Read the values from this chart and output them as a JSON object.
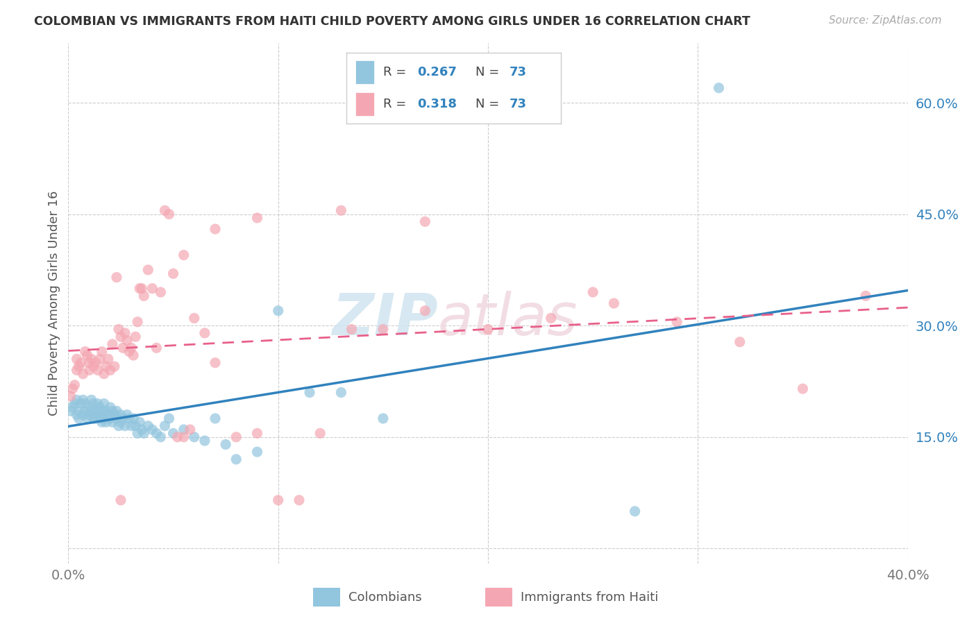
{
  "title": "COLOMBIAN VS IMMIGRANTS FROM HAITI CHILD POVERTY AMONG GIRLS UNDER 16 CORRELATION CHART",
  "source": "Source: ZipAtlas.com",
  "ylabel": "Child Poverty Among Girls Under 16",
  "xlim": [
    0.0,
    0.4
  ],
  "ylim": [
    -0.02,
    0.68
  ],
  "plot_ylim": [
    -0.02,
    0.68
  ],
  "ytick_vals": [
    0.15,
    0.3,
    0.45,
    0.6
  ],
  "ytick_labels": [
    "15.0%",
    "30.0%",
    "45.0%",
    "60.0%"
  ],
  "xtick_vals": [
    0.0,
    0.1,
    0.2,
    0.3,
    0.4
  ],
  "xtick_labels": [
    "0.0%",
    "",
    "",
    "",
    "40.0%"
  ],
  "grid_yticks": [
    0.0,
    0.15,
    0.3,
    0.45,
    0.6
  ],
  "grid_xticks": [
    0.0,
    0.1,
    0.2,
    0.3,
    0.4
  ],
  "legend_r_colombian": "0.267",
  "legend_n_colombian": "73",
  "legend_r_haitian": "0.318",
  "legend_n_haitian": "73",
  "blue_color": "#92c5de",
  "pink_color": "#f4a7b2",
  "blue_line_color": "#3182bd",
  "pink_line_color": "#e8608a",
  "watermark_zip": "ZIP",
  "watermark_atlas": "atlas",
  "grid_color": "#cccccc",
  "colombian_x": [
    0.001,
    0.002,
    0.003,
    0.004,
    0.004,
    0.005,
    0.005,
    0.006,
    0.007,
    0.007,
    0.008,
    0.008,
    0.009,
    0.01,
    0.01,
    0.011,
    0.011,
    0.012,
    0.012,
    0.013,
    0.013,
    0.014,
    0.014,
    0.015,
    0.015,
    0.016,
    0.016,
    0.017,
    0.017,
    0.018,
    0.018,
    0.019,
    0.02,
    0.02,
    0.021,
    0.021,
    0.022,
    0.023,
    0.023,
    0.024,
    0.025,
    0.025,
    0.026,
    0.027,
    0.028,
    0.029,
    0.03,
    0.031,
    0.032,
    0.033,
    0.034,
    0.035,
    0.036,
    0.038,
    0.04,
    0.042,
    0.044,
    0.046,
    0.048,
    0.05,
    0.055,
    0.06,
    0.065,
    0.07,
    0.075,
    0.08,
    0.09,
    0.1,
    0.115,
    0.13,
    0.15,
    0.27,
    0.31
  ],
  "colombian_y": [
    0.185,
    0.19,
    0.195,
    0.18,
    0.2,
    0.175,
    0.185,
    0.195,
    0.18,
    0.2,
    0.195,
    0.185,
    0.175,
    0.19,
    0.18,
    0.2,
    0.185,
    0.195,
    0.175,
    0.185,
    0.175,
    0.195,
    0.18,
    0.19,
    0.175,
    0.185,
    0.17,
    0.195,
    0.175,
    0.185,
    0.17,
    0.18,
    0.19,
    0.175,
    0.185,
    0.17,
    0.18,
    0.175,
    0.185,
    0.165,
    0.18,
    0.17,
    0.175,
    0.165,
    0.18,
    0.175,
    0.165,
    0.175,
    0.165,
    0.155,
    0.17,
    0.16,
    0.155,
    0.165,
    0.16,
    0.155,
    0.15,
    0.165,
    0.175,
    0.155,
    0.16,
    0.15,
    0.145,
    0.175,
    0.14,
    0.12,
    0.13,
    0.32,
    0.21,
    0.21,
    0.175,
    0.05,
    0.62
  ],
  "haitian_x": [
    0.001,
    0.002,
    0.003,
    0.004,
    0.004,
    0.005,
    0.006,
    0.007,
    0.008,
    0.009,
    0.01,
    0.01,
    0.011,
    0.012,
    0.013,
    0.014,
    0.015,
    0.016,
    0.017,
    0.018,
    0.019,
    0.02,
    0.021,
    0.022,
    0.023,
    0.024,
    0.025,
    0.026,
    0.027,
    0.028,
    0.029,
    0.03,
    0.031,
    0.032,
    0.033,
    0.034,
    0.035,
    0.036,
    0.038,
    0.04,
    0.042,
    0.044,
    0.046,
    0.048,
    0.05,
    0.052,
    0.055,
    0.058,
    0.06,
    0.065,
    0.07,
    0.08,
    0.09,
    0.1,
    0.11,
    0.12,
    0.135,
    0.15,
    0.17,
    0.2,
    0.23,
    0.26,
    0.29,
    0.32,
    0.35,
    0.38,
    0.025,
    0.055,
    0.07,
    0.09,
    0.13,
    0.17,
    0.25
  ],
  "haitian_y": [
    0.205,
    0.215,
    0.22,
    0.24,
    0.255,
    0.245,
    0.25,
    0.235,
    0.265,
    0.26,
    0.25,
    0.24,
    0.255,
    0.245,
    0.25,
    0.24,
    0.255,
    0.265,
    0.235,
    0.245,
    0.255,
    0.24,
    0.275,
    0.245,
    0.365,
    0.295,
    0.285,
    0.27,
    0.29,
    0.28,
    0.265,
    0.27,
    0.26,
    0.285,
    0.305,
    0.35,
    0.35,
    0.34,
    0.375,
    0.35,
    0.27,
    0.345,
    0.455,
    0.45,
    0.37,
    0.15,
    0.15,
    0.16,
    0.31,
    0.29,
    0.25,
    0.15,
    0.155,
    0.065,
    0.065,
    0.155,
    0.295,
    0.295,
    0.32,
    0.295,
    0.31,
    0.33,
    0.305,
    0.278,
    0.215,
    0.34,
    0.065,
    0.395,
    0.43,
    0.445,
    0.455,
    0.44,
    0.345
  ]
}
